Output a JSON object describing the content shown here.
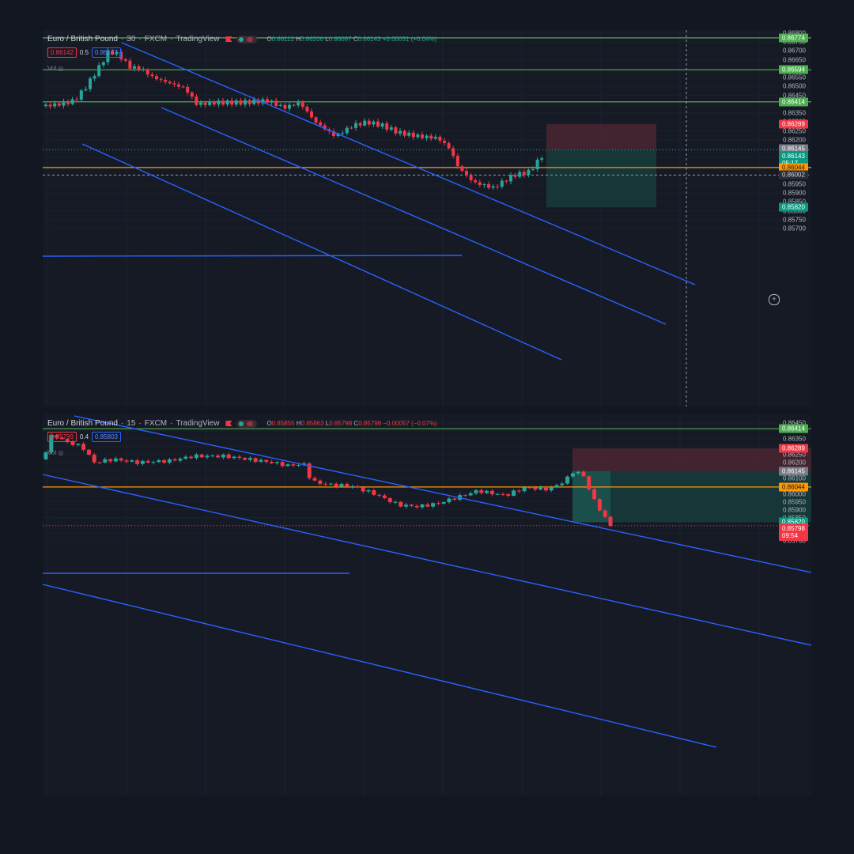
{
  "colors": {
    "up": "#26a69a",
    "down": "#f23645",
    "channel": "#2962ff",
    "level_green": "#4caf50",
    "level_orange": "#ff9800",
    "stop_zone": "#4a2733",
    "target_zone": "#173c3c"
  },
  "panes": [
    {
      "symbol": "Euro / British Pound",
      "interval": "30",
      "broker": "FXCM",
      "platform": "TradingView",
      "ohlc": {
        "o": "0.86112",
        "h": "0.86206",
        "l": "0.86097",
        "c": "0.86143",
        "change": "+0.00031 (+0.04%)"
      },
      "bid": "0.86142",
      "spread": "0.5",
      "ask": "0.86147",
      "vol_label": "Vol",
      "axis_ticks": [
        "0.86800",
        "0.86750",
        "0.86700",
        "0.86650",
        "0.86600",
        "0.86550",
        "0.86500",
        "0.86450",
        "0.86400",
        "0.86350",
        "0.86300",
        "0.86250",
        "0.86200",
        "0.86150",
        "0.86100",
        "0.86050",
        "0.86000",
        "0.85950",
        "0.85900",
        "0.85850",
        "0.85800",
        "0.85750",
        "0.85700"
      ],
      "price_labels": [
        "0.86774",
        "0.86594",
        "0.86414",
        "0.86289",
        "0.86145",
        "0.86143",
        "05:17",
        "0.86044",
        "0.86002",
        "0.85820"
      ],
      "plus_icon": "+"
    },
    {
      "symbol": "Euro / British Pound",
      "interval": "15",
      "broker": "FXCM",
      "platform": "TradingView",
      "ohlc": {
        "o": "0.85855",
        "h": "0.85863",
        "l": "0.85798",
        "c": "0.85798",
        "change": "−0.00057 (−0.07%)"
      },
      "bid": "0.85799",
      "spread": "0.4",
      "ask": "0.85803",
      "vol_label": "Vol",
      "axis_ticks": [
        "0.86450",
        "0.86400",
        "0.86350",
        "0.86300",
        "0.86250",
        "0.86200",
        "0.86150",
        "0.86100",
        "0.86050",
        "0.86000",
        "0.85950",
        "0.85900",
        "0.85850",
        "0.85800",
        "0.85750",
        "0.85700"
      ],
      "price_labels": [
        "0.86414",
        "0.86289",
        "0.86145",
        "0.86044",
        "0.85820",
        "0.85798",
        "09:54"
      ]
    }
  ]
}
